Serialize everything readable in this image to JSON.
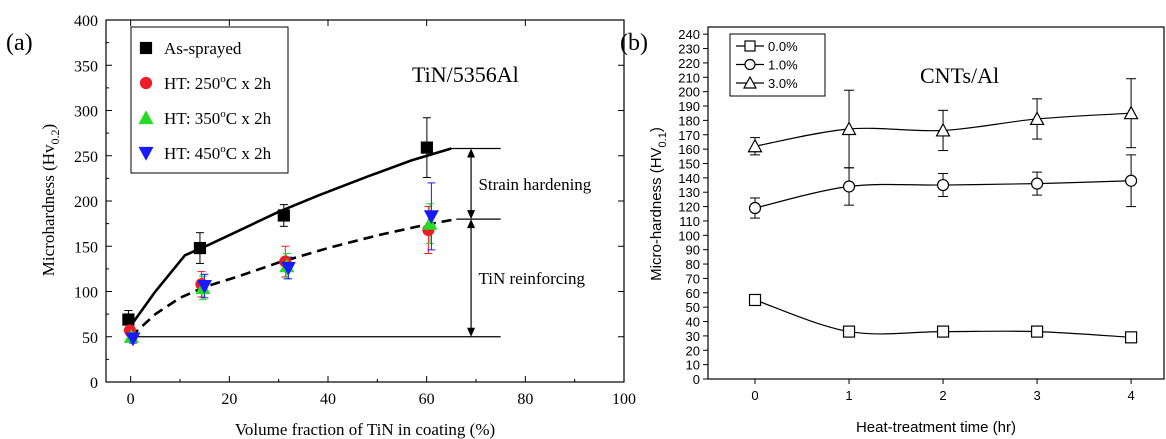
{
  "chart_data": [
    {
      "panel_label": "(a)",
      "type": "scatter",
      "annotation_title": "TiN/5356Al",
      "xlabel": "Volume fraction of TiN in coating (%)",
      "ylabel_main": "Microhardness (Hv",
      "ylabel_sub": "0.2",
      "ylabel_close": ")",
      "xlim": [
        -5,
        100
      ],
      "ylim": [
        0,
        400
      ],
      "xticks": [
        0,
        20,
        40,
        60,
        80,
        100
      ],
      "yticks": [
        0,
        50,
        100,
        150,
        200,
        250,
        300,
        350,
        400
      ],
      "series": [
        {
          "name_parts": [
            "As-sprayed",
            "",
            ""
          ],
          "marker": "square",
          "color": "#000000",
          "x": [
            0,
            14.5,
            31.5,
            60.5
          ],
          "y": [
            69,
            148,
            184,
            259
          ],
          "err": [
            10,
            17,
            12,
            33
          ]
        },
        {
          "name_parts": [
            "HT: 250",
            "o",
            "C x 2h"
          ],
          "marker": "circle",
          "color": "#ee1c24",
          "x": [
            0,
            14.5,
            31.5,
            60.5
          ],
          "y": [
            57,
            108,
            133,
            168
          ],
          "err": [
            6,
            14,
            17,
            26
          ]
        },
        {
          "name_parts": [
            "HT: 350",
            "o",
            "C x 2h"
          ],
          "marker": "triangle-up",
          "color": "#22dd22",
          "x": [
            0,
            14.5,
            31.5,
            60.5
          ],
          "y": [
            50,
            104,
            128,
            175
          ],
          "err": [
            5,
            13,
            14,
            22
          ]
        },
        {
          "name_parts": [
            "HT: 450",
            "o",
            "C x 2h"
          ],
          "marker": "triangle-down",
          "color": "#1a1aff",
          "x": [
            0,
            14.5,
            31.5,
            60.5
          ],
          "y": [
            48,
            106,
            126,
            183
          ],
          "err": [
            5,
            13,
            12,
            37
          ]
        }
      ],
      "fit_lines": [
        {
          "style": "solid",
          "x": [
            0,
            5,
            11,
            16,
            23,
            30,
            38,
            48,
            57,
            65
          ],
          "y": [
            62,
            100,
            140,
            152,
            170,
            188,
            206,
            227,
            245,
            258
          ]
        },
        {
          "style": "dashed",
          "x": [
            0,
            5,
            10,
            15,
            22,
            30,
            40,
            50,
            60,
            66
          ],
          "y": [
            50,
            75,
            93,
            105,
            117,
            132,
            148,
            162,
            174,
            180
          ]
        }
      ],
      "reference_lines": [
        {
          "y": 50,
          "x0": 0,
          "x1": 75
        },
        {
          "y": 180,
          "x0": 66,
          "x1": 75
        },
        {
          "y": 258,
          "x0": 65,
          "x1": 75
        }
      ],
      "annotations": [
        {
          "text": "Strain hardening",
          "arrow_x": 69,
          "y0": 180,
          "y1": 258,
          "text_x": 70.5,
          "text_y": 219
        },
        {
          "text": "TiN reinforcing",
          "arrow_x": 69,
          "y0": 50,
          "y1": 180,
          "text_x": 70.5,
          "text_y": 115
        }
      ]
    },
    {
      "panel_label": "(b)",
      "type": "line",
      "annotation_title": "CNTs/Al",
      "xlabel": "Heat-treatment time (hr)",
      "ylabel_main": "Micro-hardness (HV",
      "ylabel_sub": "0.1",
      "ylabel_close": ")",
      "xlim": [
        -0.5,
        4.35
      ],
      "ylim": [
        0,
        245
      ],
      "xticks": [
        0,
        1,
        2,
        3,
        4
      ],
      "yticks": [
        0,
        10,
        20,
        30,
        40,
        50,
        60,
        70,
        80,
        90,
        100,
        110,
        120,
        130,
        140,
        150,
        160,
        170,
        180,
        190,
        200,
        210,
        220,
        230,
        240
      ],
      "x": [
        0,
        1,
        2,
        3,
        4
      ],
      "series": [
        {
          "name": "0.0%",
          "marker": "square",
          "y": [
            55,
            33,
            33,
            33,
            29
          ],
          "err": [
            0,
            0,
            0,
            0,
            0
          ]
        },
        {
          "name": "1.0%",
          "marker": "circle",
          "y": [
            119,
            134,
            135,
            136,
            138
          ],
          "err": [
            7,
            13,
            8,
            8,
            18
          ]
        },
        {
          "name": "3.0%",
          "marker": "triangle-up",
          "y": [
            162,
            174,
            173,
            181,
            185
          ],
          "err": [
            6,
            27,
            14,
            14,
            24
          ]
        }
      ]
    }
  ]
}
